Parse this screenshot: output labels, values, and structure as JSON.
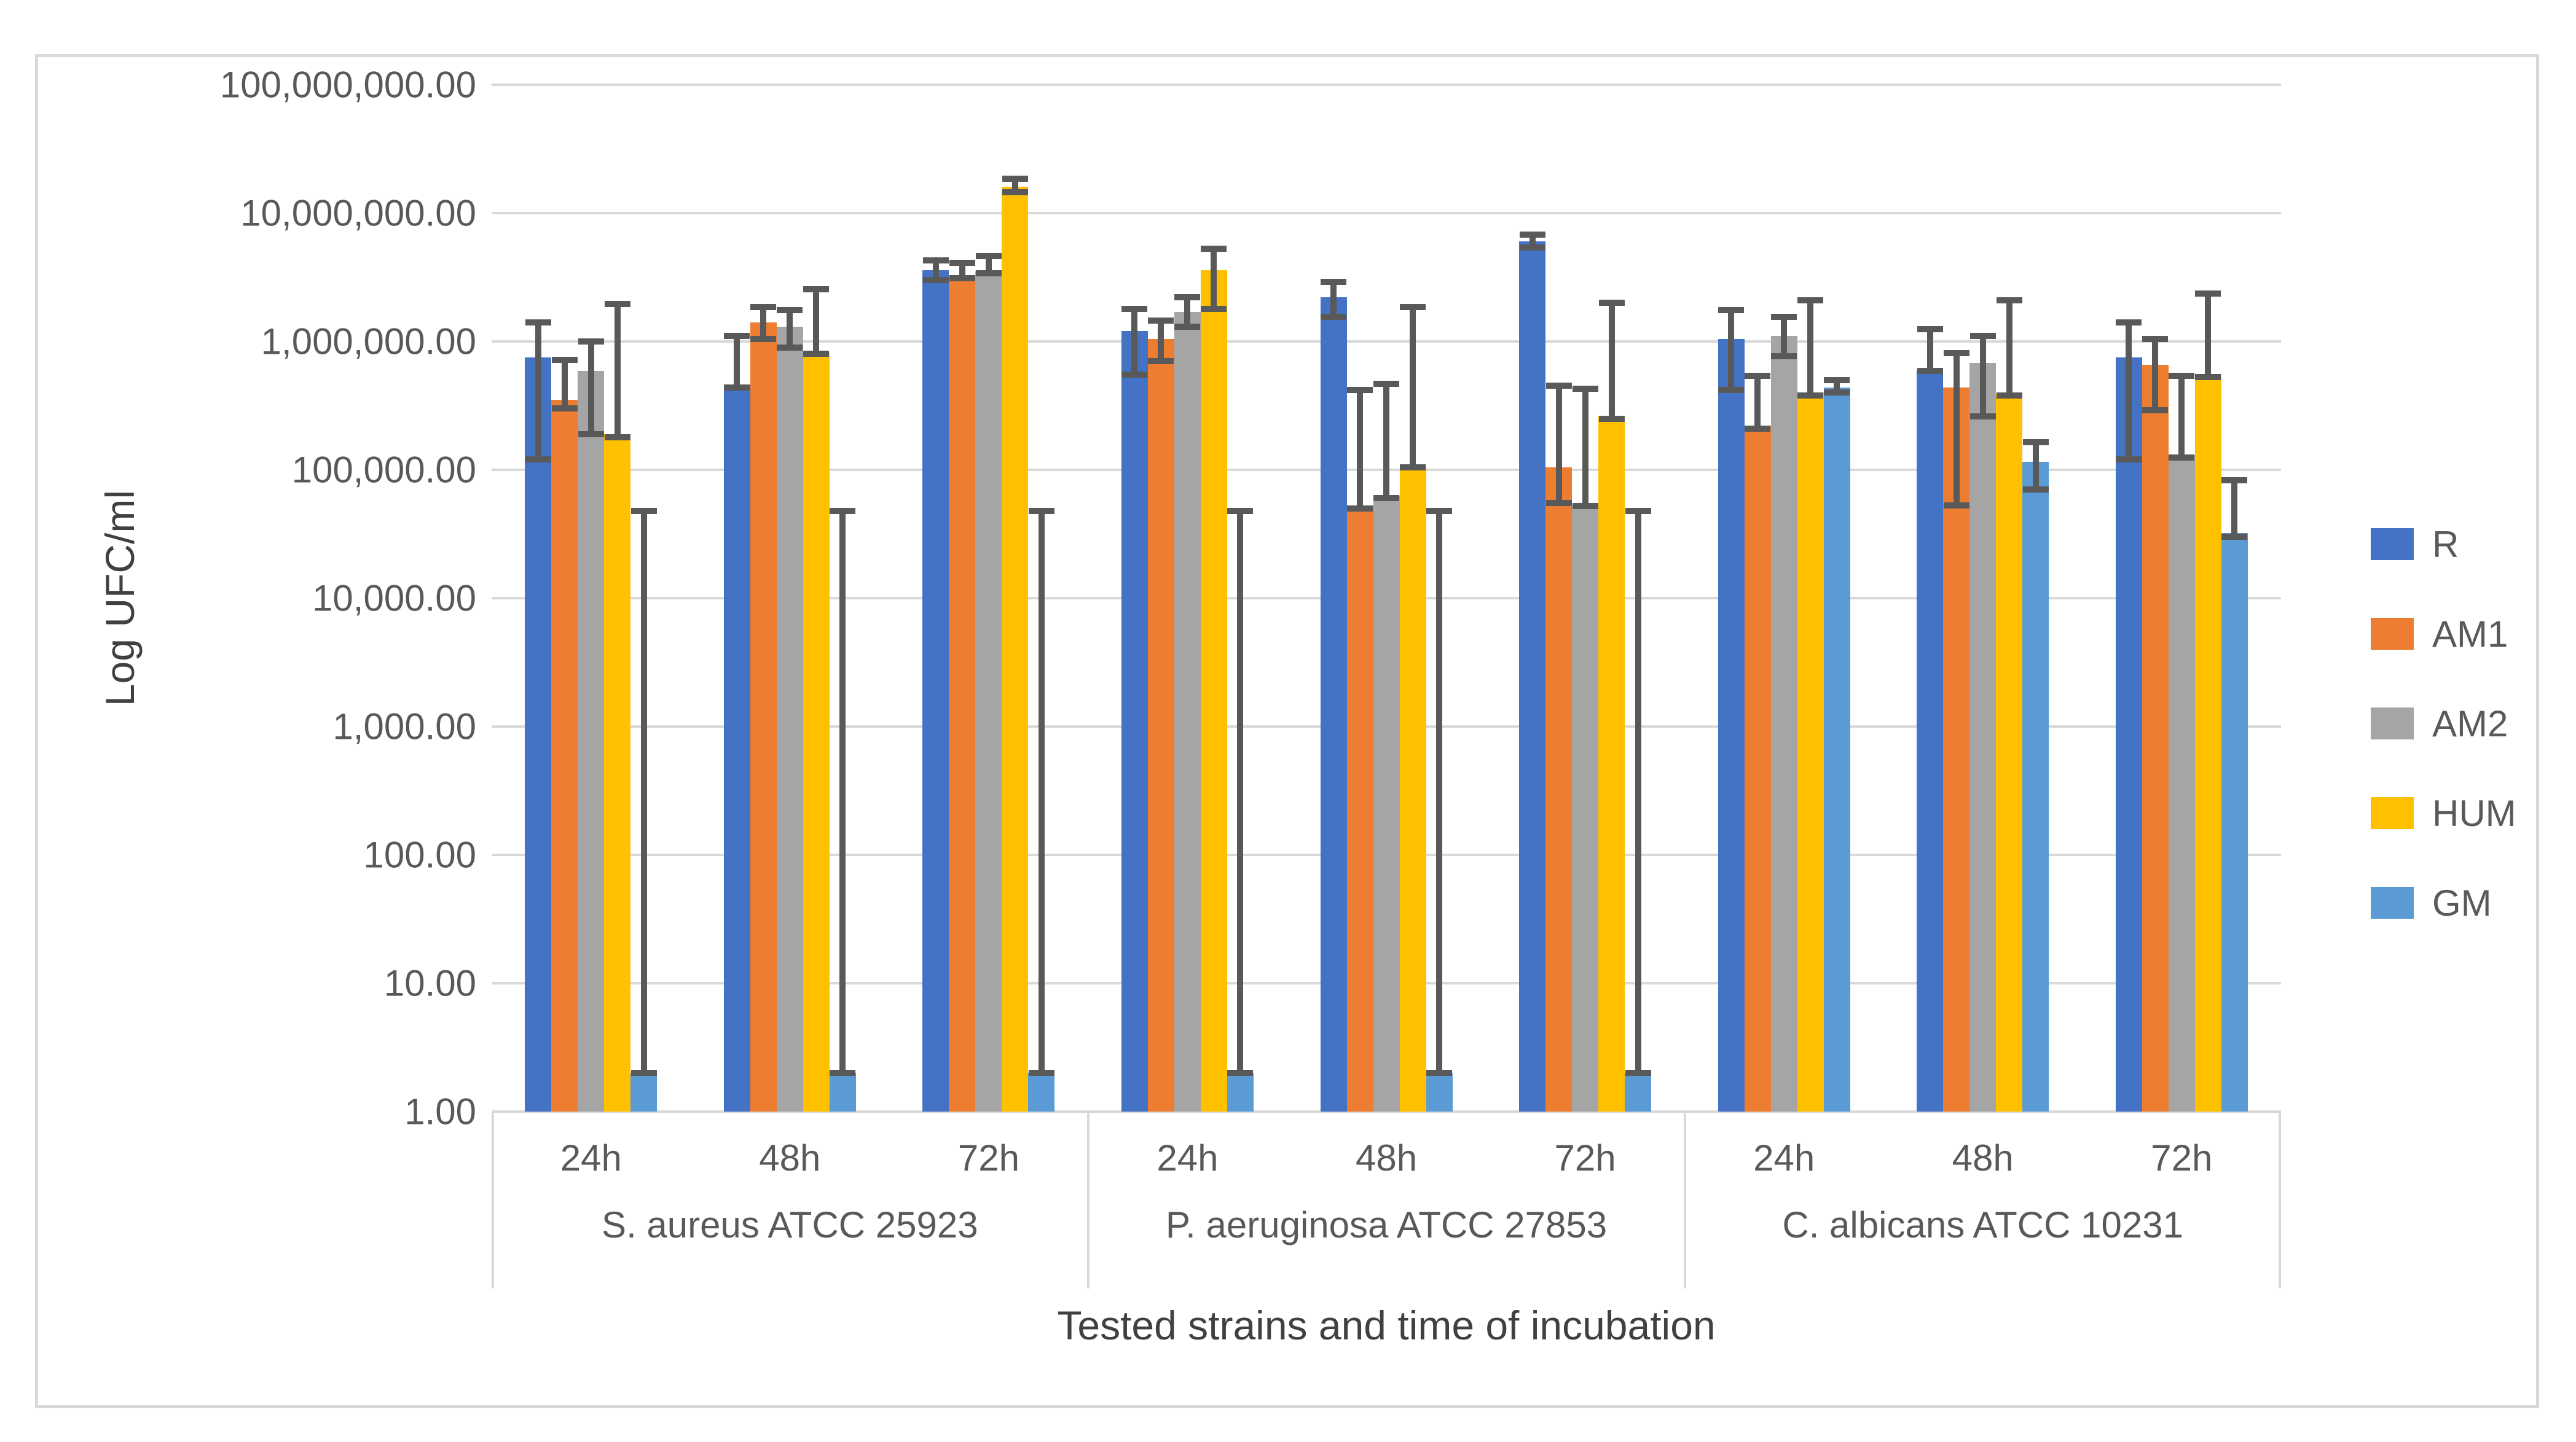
{
  "y_axis": {
    "title": "Log UFC/ml",
    "ticks": [
      "100,000,000.00",
      "10,000,000.00",
      "1,000,000.00",
      "100,000.00",
      "10,000.00",
      "1,000.00",
      "100.00",
      "10.00",
      "1.00"
    ]
  },
  "x_axis": {
    "title": "Tested strains and time of incubation"
  },
  "legend": [
    {
      "label": "R",
      "color": "#4472C4"
    },
    {
      "label": "AM1",
      "color": "#ED7D31"
    },
    {
      "label": "AM2",
      "color": "#A5A5A5"
    },
    {
      "label": "HUM",
      "color": "#FFC000"
    },
    {
      "label": "GM",
      "color": "#5B9BD5"
    }
  ],
  "colors": {
    "gridline": "#D9D9D9",
    "error_bar": "#595959",
    "text": "#595959"
  },
  "chart_data": {
    "type": "bar",
    "log_scale": true,
    "ylim": [
      1,
      100000000
    ],
    "ylabel": "Log UFC/ml",
    "xlabel": "Tested strains and time of incubation",
    "grid": true,
    "legend_position": "right",
    "error_bars": true,
    "series_names": [
      "R",
      "AM1",
      "AM2",
      "HUM",
      "GM"
    ],
    "series_colors": {
      "R": "#4472C4",
      "AM1": "#ED7D31",
      "AM2": "#A5A5A5",
      "HUM": "#FFC000",
      "GM": "#5B9BD5"
    },
    "groups": [
      {
        "strain": "S. aureus ATCC 25923",
        "times": [
          {
            "time": "24h",
            "bars": [
              {
                "series": "R",
                "value": 750000,
                "err_low": 120000,
                "err_high": 1400000
              },
              {
                "series": "AM1",
                "value": 350000,
                "err_low": 300000,
                "err_high": 720000
              },
              {
                "series": "AM2",
                "value": 590000,
                "err_low": 190000,
                "err_high": 1000000
              },
              {
                "series": "HUM",
                "value": 190000,
                "err_low": 180000,
                "err_high": 1950000
              },
              {
                "series": "GM",
                "value": 2,
                "err_low": 2,
                "err_high": 48000
              }
            ]
          },
          {
            "time": "48h",
            "bars": [
              {
                "series": "R",
                "value": 460000,
                "err_low": 440000,
                "err_high": 1100000
              },
              {
                "series": "AM1",
                "value": 1400000,
                "err_low": 1050000,
                "err_high": 1850000
              },
              {
                "series": "AM2",
                "value": 1300000,
                "err_low": 900000,
                "err_high": 1750000
              },
              {
                "series": "HUM",
                "value": 820000,
                "err_low": 800000,
                "err_high": 2550000
              },
              {
                "series": "GM",
                "value": 2,
                "err_low": 2,
                "err_high": 48000
              }
            ]
          },
          {
            "time": "72h",
            "bars": [
              {
                "series": "R",
                "value": 3600000,
                "err_low": 3000000,
                "err_high": 4300000
              },
              {
                "series": "AM1",
                "value": 3300000,
                "err_low": 3100000,
                "err_high": 4100000
              },
              {
                "series": "AM2",
                "value": 3500000,
                "err_low": 3400000,
                "err_high": 4600000
              },
              {
                "series": "HUM",
                "value": 16000000,
                "err_low": 14500000,
                "err_high": 18500000
              },
              {
                "series": "GM",
                "value": 2,
                "err_low": 2,
                "err_high": 48000
              }
            ]
          }
        ]
      },
      {
        "strain": "P. aeruginosa ATCC 27853",
        "times": [
          {
            "time": "24h",
            "bars": [
              {
                "series": "R",
                "value": 1200000,
                "err_low": 550000,
                "err_high": 1800000
              },
              {
                "series": "AM1",
                "value": 1050000,
                "err_low": 700000,
                "err_high": 1450000
              },
              {
                "series": "AM2",
                "value": 1700000,
                "err_low": 1300000,
                "err_high": 2200000
              },
              {
                "series": "HUM",
                "value": 3600000,
                "err_low": 1800000,
                "err_high": 5300000
              },
              {
                "series": "GM",
                "value": 2,
                "err_low": 2,
                "err_high": 48000
              }
            ]
          },
          {
            "time": "48h",
            "bars": [
              {
                "series": "R",
                "value": 2200000,
                "err_low": 1550000,
                "err_high": 2900000
              },
              {
                "series": "AM1",
                "value": 53000,
                "err_low": 50000,
                "err_high": 420000
              },
              {
                "series": "AM2",
                "value": 63000,
                "err_low": 60000,
                "err_high": 470000
              },
              {
                "series": "HUM",
                "value": 110000,
                "err_low": 105000,
                "err_high": 1850000
              },
              {
                "series": "GM",
                "value": 2,
                "err_low": 2,
                "err_high": 48000
              }
            ]
          },
          {
            "time": "72h",
            "bars": [
              {
                "series": "R",
                "value": 6000000,
                "err_low": 5400000,
                "err_high": 6800000
              },
              {
                "series": "AM1",
                "value": 105000,
                "err_low": 55000,
                "err_high": 450000
              },
              {
                "series": "AM2",
                "value": 53000,
                "err_low": 52000,
                "err_high": 430000
              },
              {
                "series": "HUM",
                "value": 260000,
                "err_low": 250000,
                "err_high": 2000000
              },
              {
                "series": "GM",
                "value": 2,
                "err_low": 2,
                "err_high": 48000
              }
            ]
          }
        ]
      },
      {
        "strain": "C. albicans ATCC 10231",
        "times": [
          {
            "time": "24h",
            "bars": [
              {
                "series": "R",
                "value": 1050000,
                "err_low": 420000,
                "err_high": 1750000
              },
              {
                "series": "AM1",
                "value": 220000,
                "err_low": 210000,
                "err_high": 540000
              },
              {
                "series": "AM2",
                "value": 1100000,
                "err_low": 770000,
                "err_high": 1550000
              },
              {
                "series": "HUM",
                "value": 400000,
                "err_low": 380000,
                "err_high": 2100000
              },
              {
                "series": "GM",
                "value": 440000,
                "err_low": 400000,
                "err_high": 500000
              }
            ]
          },
          {
            "time": "48h",
            "bars": [
              {
                "series": "R",
                "value": 600000,
                "err_low": 590000,
                "err_high": 1250000
              },
              {
                "series": "AM1",
                "value": 440000,
                "err_low": 53000,
                "err_high": 810000
              },
              {
                "series": "AM2",
                "value": 680000,
                "err_low": 260000,
                "err_high": 1100000
              },
              {
                "series": "HUM",
                "value": 390000,
                "err_low": 380000,
                "err_high": 2100000
              },
              {
                "series": "GM",
                "value": 115000,
                "err_low": 70000,
                "err_high": 165000
              }
            ]
          },
          {
            "time": "72h",
            "bars": [
              {
                "series": "R",
                "value": 750000,
                "err_low": 120000,
                "err_high": 1400000
              },
              {
                "series": "AM1",
                "value": 660000,
                "err_low": 290000,
                "err_high": 1050000
              },
              {
                "series": "AM2",
                "value": 130000,
                "err_low": 125000,
                "err_high": 540000
              },
              {
                "series": "HUM",
                "value": 550000,
                "err_low": 530000,
                "err_high": 2350000
              },
              {
                "series": "GM",
                "value": 32000,
                "err_low": 30000,
                "err_high": 83000
              }
            ]
          }
        ]
      }
    ]
  }
}
